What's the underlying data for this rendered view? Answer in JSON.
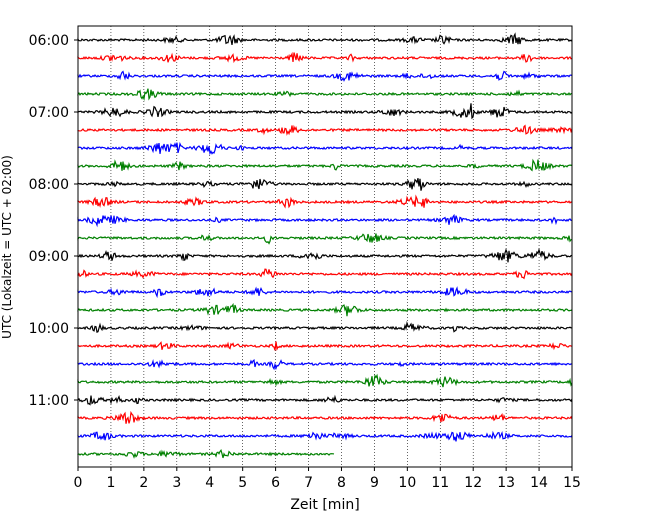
{
  "chart_data": {
    "type": "line",
    "title": "",
    "xlabel": "Zeit  [min]",
    "ylabel": "UTC (Lokalzeit = UTC + 02:00)",
    "xlim": [
      0,
      15
    ],
    "x_ticks": [
      0,
      1,
      2,
      3,
      4,
      5,
      6,
      7,
      8,
      9,
      10,
      11,
      12,
      13,
      14,
      15
    ],
    "y_tick_labels": [
      "06:00",
      "07:00",
      "08:00",
      "09:00",
      "10:00",
      "11:00"
    ],
    "grid": "vertical dotted lines at each minute",
    "line_colors": [
      "#000000",
      "#ff0000",
      "#0000ff",
      "#008000"
    ],
    "traces": [
      {
        "start": "06:00",
        "end_min": 15,
        "color": "#000000"
      },
      {
        "start": "06:15",
        "end_min": 15,
        "color": "#ff0000"
      },
      {
        "start": "06:30",
        "end_min": 15,
        "color": "#0000ff"
      },
      {
        "start": "06:45",
        "end_min": 15,
        "color": "#008000"
      },
      {
        "start": "07:00",
        "end_min": 15,
        "color": "#000000"
      },
      {
        "start": "07:15",
        "end_min": 15,
        "color": "#ff0000"
      },
      {
        "start": "07:30",
        "end_min": 15,
        "color": "#0000ff"
      },
      {
        "start": "07:45",
        "end_min": 15,
        "color": "#008000"
      },
      {
        "start": "08:00",
        "end_min": 15,
        "color": "#000000"
      },
      {
        "start": "08:15",
        "end_min": 15,
        "color": "#ff0000"
      },
      {
        "start": "08:30",
        "end_min": 15,
        "color": "#0000ff"
      },
      {
        "start": "08:45",
        "end_min": 15,
        "color": "#008000"
      },
      {
        "start": "09:00",
        "end_min": 15,
        "color": "#000000"
      },
      {
        "start": "09:15",
        "end_min": 15,
        "color": "#ff0000"
      },
      {
        "start": "09:30",
        "end_min": 15,
        "color": "#0000ff"
      },
      {
        "start": "09:45",
        "end_min": 15,
        "color": "#008000"
      },
      {
        "start": "10:00",
        "end_min": 15,
        "color": "#000000"
      },
      {
        "start": "10:15",
        "end_min": 15,
        "color": "#ff0000"
      },
      {
        "start": "10:30",
        "end_min": 15,
        "color": "#0000ff"
      },
      {
        "start": "10:45",
        "end_min": 15,
        "color": "#008000"
      },
      {
        "start": "11:00",
        "end_min": 15,
        "color": "#000000"
      },
      {
        "start": "11:15",
        "end_min": 15,
        "color": "#ff0000"
      },
      {
        "start": "11:30",
        "end_min": 15,
        "color": "#0000ff"
      },
      {
        "start": "11:45",
        "end_min": 7.8,
        "color": "#008000"
      }
    ]
  }
}
